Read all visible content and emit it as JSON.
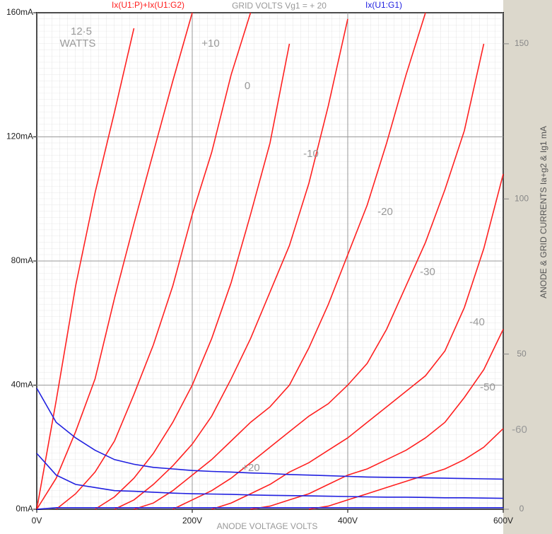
{
  "chart_data": {
    "type": "line",
    "title": "GRID VOLTS Vg1 = + 20",
    "x": [
      0,
      25,
      50,
      75,
      100,
      125,
      150,
      175,
      200,
      225,
      250,
      275,
      300,
      325,
      350,
      375,
      400,
      425,
      450,
      475,
      500,
      525,
      550,
      575,
      600
    ],
    "xlim": [
      0,
      600
    ],
    "xticks": [
      {
        "value": 0,
        "label": "0V"
      },
      {
        "value": 200,
        "label": "200V"
      },
      {
        "value": 400,
        "label": "400V"
      },
      {
        "value": 600,
        "label": "600V"
      }
    ],
    "ylim": [
      0,
      160
    ],
    "yticks": [
      {
        "value": 0,
        "label": "0mA"
      },
      {
        "value": 40,
        "label": "40mA"
      },
      {
        "value": 80,
        "label": "80mA"
      },
      {
        "value": 120,
        "label": "120mA"
      },
      {
        "value": 160,
        "label": "160mA"
      }
    ],
    "y2lim": [
      0,
      160
    ],
    "y2ticks": [
      0,
      50,
      100,
      150
    ],
    "y2label": "ANODE & GRID CURRENTS Ia+g2 & Ig1 mA",
    "xlabel": "ANODE VOLTAGE VOLTS",
    "grid": true,
    "series": [
      {
        "name": "Ix(U1:P)+Ix(U1:G2)",
        "color": "#ff2020",
        "curves": [
          [
            0,
            35,
            72,
            102,
            128,
            155,
            null,
            null,
            null,
            null,
            null,
            null,
            null,
            null,
            null,
            null,
            null,
            null,
            null,
            null,
            null,
            null,
            null,
            null,
            null
          ],
          [
            0,
            10,
            25,
            42,
            68,
            92,
            115,
            138,
            160,
            null,
            null,
            null,
            null,
            null,
            null,
            null,
            null,
            null,
            null,
            null,
            null,
            null,
            null,
            null,
            null
          ],
          [
            null,
            0,
            5,
            12,
            22,
            37,
            53,
            72,
            95,
            115,
            140,
            160,
            null,
            null,
            null,
            null,
            null,
            null,
            null,
            null,
            null,
            null,
            null,
            null,
            null
          ],
          [
            null,
            null,
            null,
            0,
            4,
            10,
            18,
            28,
            40,
            55,
            73,
            95,
            118,
            150,
            null,
            null,
            null,
            null,
            null,
            null,
            null,
            null,
            null,
            null,
            null
          ],
          [
            null,
            null,
            null,
            null,
            0,
            3,
            8,
            14,
            21,
            30,
            42,
            55,
            70,
            85,
            105,
            130,
            158,
            null,
            null,
            null,
            null,
            null,
            null,
            null,
            null
          ],
          [
            null,
            null,
            null,
            null,
            null,
            0,
            2,
            6,
            11,
            16,
            22,
            28,
            33,
            40,
            52,
            66,
            82,
            98,
            118,
            140,
            160,
            null,
            null,
            null,
            null
          ],
          [
            null,
            null,
            null,
            null,
            null,
            null,
            null,
            0,
            3,
            6,
            10,
            15,
            20,
            25,
            30,
            34,
            40,
            47,
            58,
            72,
            86,
            103,
            122,
            150,
            null
          ],
          [
            null,
            null,
            null,
            null,
            null,
            null,
            null,
            null,
            null,
            0,
            2,
            5,
            8,
            12,
            15,
            19,
            23,
            28,
            33,
            38,
            43,
            51,
            65,
            84,
            108
          ],
          [
            null,
            null,
            null,
            null,
            null,
            null,
            null,
            null,
            null,
            null,
            null,
            0,
            1,
            3,
            5,
            8,
            11,
            13,
            16,
            19,
            23,
            28,
            36,
            45,
            58
          ],
          [
            null,
            null,
            null,
            null,
            null,
            null,
            null,
            null,
            null,
            null,
            null,
            null,
            null,
            null,
            0,
            1,
            3,
            5,
            7,
            9,
            11,
            13,
            16,
            20,
            26
          ]
        ]
      },
      {
        "name": "Ix(U1:G1)",
        "color": "#2020e0",
        "curves": [
          [
            39,
            28,
            23,
            19,
            16,
            14.5,
            13.5,
            13,
            12.5,
            12.2,
            12,
            11.7,
            11.5,
            11.2,
            11,
            10.8,
            10.6,
            10.4,
            10.3,
            10.2,
            10.1,
            10,
            9.9,
            9.8,
            9.7
          ],
          [
            18,
            11,
            8,
            7,
            6,
            5.8,
            5.5,
            5.2,
            5,
            4.9,
            4.8,
            4.6,
            4.5,
            4.4,
            4.3,
            4.2,
            4.1,
            4,
            3.9,
            3.9,
            3.8,
            3.7,
            3.7,
            3.6,
            3.5
          ],
          [
            0,
            0.5,
            0.5,
            0.5,
            0.5,
            0.5,
            0.5,
            0.5,
            0.5,
            0.5,
            0.5,
            0.5,
            0.5,
            0.5,
            0.5,
            0.5,
            0.5,
            0.5,
            0.5,
            0.5,
            0.5,
            0.5,
            0.5,
            0.5,
            0.5
          ]
        ]
      }
    ],
    "annotations": [
      "12·5",
      "WATTS",
      "+10",
      "0",
      "-10",
      "-20",
      "-30",
      "-40",
      "-50",
      "-60",
      "+20"
    ]
  }
}
